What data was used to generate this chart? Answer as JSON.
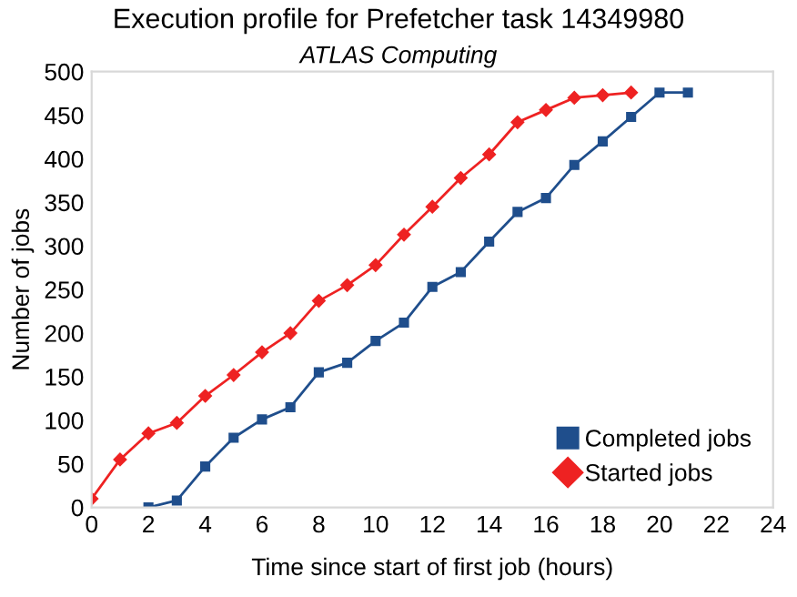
{
  "chart_data": {
    "type": "line",
    "title": "Execution profile for Prefetcher task 14349980",
    "subtitle": "ATLAS Computing",
    "xlabel": "Time since start of first job (hours)",
    "ylabel": "Number of jobs",
    "xlim": [
      0,
      24
    ],
    "xticks": [
      0,
      2,
      4,
      6,
      8,
      10,
      12,
      14,
      16,
      18,
      20,
      22,
      24
    ],
    "ylim": [
      0,
      500
    ],
    "yticks": [
      0,
      50,
      100,
      150,
      200,
      250,
      300,
      350,
      400,
      450,
      500
    ],
    "grid": false,
    "legend": "bottom right",
    "line_style": "solid",
    "series": [
      {
        "name": "Completed jobs",
        "color": "#1f4e8c",
        "marker": "square",
        "x": [
          2,
          3,
          4,
          5,
          6,
          7,
          8,
          9,
          10,
          11,
          12,
          13,
          14,
          15,
          16,
          17,
          18,
          19,
          20,
          21
        ],
        "values": [
          0,
          8,
          47,
          80,
          101,
          115,
          155,
          166,
          191,
          212,
          253,
          270,
          305,
          339,
          355,
          393,
          420,
          448,
          476,
          476
        ]
      },
      {
        "name": "Started jobs",
        "color": "#ee2222",
        "marker": "diamond",
        "x": [
          0,
          1,
          2,
          3,
          4,
          5,
          6,
          7,
          8,
          9,
          10,
          11,
          12,
          13,
          14,
          15,
          16,
          17,
          18,
          19
        ],
        "values": [
          10,
          55,
          85,
          97,
          128,
          152,
          178,
          200,
          237,
          255,
          278,
          313,
          345,
          378,
          405,
          442,
          456,
          470,
          473,
          476
        ]
      }
    ]
  }
}
